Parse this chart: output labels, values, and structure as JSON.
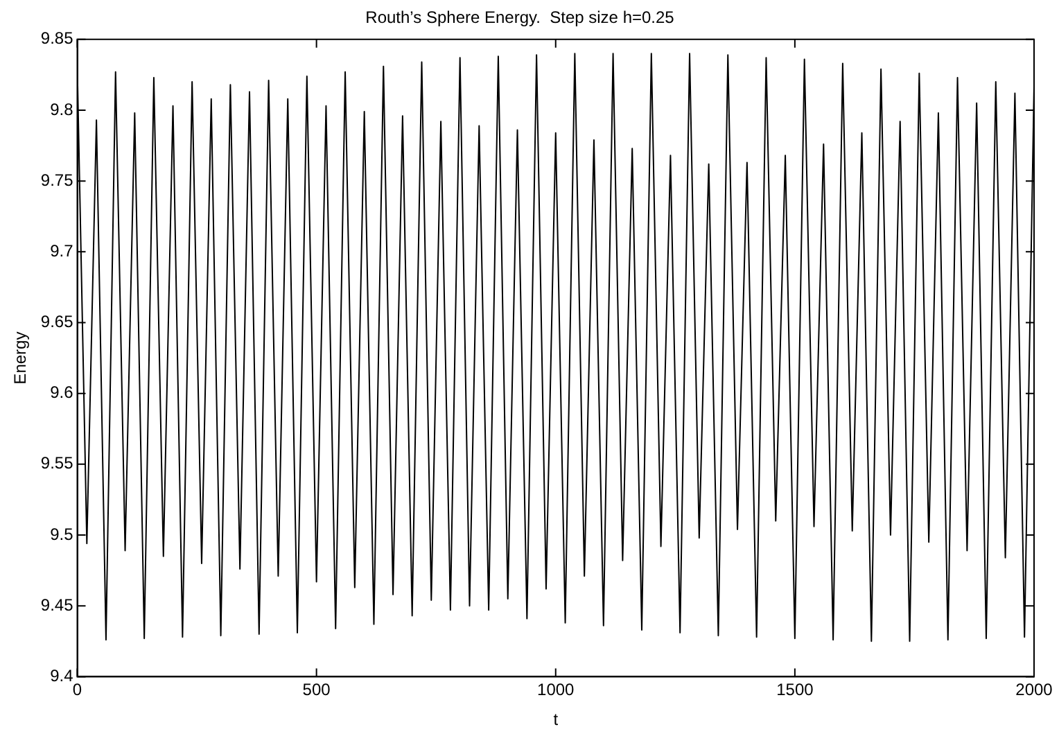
{
  "chart_data": {
    "type": "line",
    "title": "Routh’s Sphere Energy.  Step size h=0.25",
    "xlabel": "t",
    "ylabel": "Energy",
    "xlim": [
      0,
      2000
    ],
    "xticks": [
      0,
      500,
      1000,
      1500,
      2000
    ],
    "ylim": [
      9.4,
      9.85
    ],
    "yticks": [
      9.4,
      9.45,
      9.5,
      9.55,
      9.6,
      9.65,
      9.7,
      9.75,
      9.8,
      9.85
    ],
    "grid": false,
    "legend": false,
    "x": [
      0,
      20,
      40,
      60,
      80,
      100,
      120,
      140,
      160,
      180,
      200,
      220,
      240,
      260,
      280,
      300,
      320,
      340,
      360,
      380,
      400,
      420,
      440,
      460,
      480,
      500,
      520,
      540,
      560,
      580,
      600,
      620,
      640,
      660,
      680,
      700,
      720,
      740,
      760,
      780,
      800,
      820,
      840,
      860,
      880,
      900,
      920,
      940,
      960,
      980,
      1000,
      1020,
      1040,
      1060,
      1080,
      1100,
      1120,
      1140,
      1160,
      1180,
      1200,
      1220,
      1240,
      1260,
      1280,
      1300,
      1320,
      1340,
      1360,
      1380,
      1400,
      1420,
      1440,
      1460,
      1480,
      1500,
      1520,
      1540,
      1560,
      1580,
      1600,
      1620,
      1640,
      1660,
      1680,
      1700,
      1720,
      1740,
      1760,
      1780,
      1800,
      1820,
      1840,
      1860,
      1880,
      1900,
      1920,
      1940,
      1960,
      1980,
      2000
    ],
    "series": [
      {
        "color": "#000000",
        "values": [
          9.83,
          9.494,
          9.793,
          9.426,
          9.827,
          9.489,
          9.798,
          9.427,
          9.823,
          9.485,
          9.803,
          9.428,
          9.82,
          9.48,
          9.808,
          9.429,
          9.818,
          9.476,
          9.813,
          9.43,
          9.821,
          9.471,
          9.808,
          9.431,
          9.824,
          9.467,
          9.803,
          9.434,
          9.827,
          9.463,
          9.799,
          9.437,
          9.831,
          9.458,
          9.796,
          9.443,
          9.834,
          9.454,
          9.792,
          9.447,
          9.837,
          9.45,
          9.789,
          9.447,
          9.838,
          9.455,
          9.786,
          9.441,
          9.839,
          9.462,
          9.784,
          9.438,
          9.84,
          9.471,
          9.779,
          9.436,
          9.84,
          9.482,
          9.773,
          9.433,
          9.84,
          9.492,
          9.768,
          9.431,
          9.84,
          9.498,
          9.762,
          9.429,
          9.839,
          9.504,
          9.763,
          9.428,
          9.837,
          9.51,
          9.768,
          9.427,
          9.836,
          9.506,
          9.776,
          9.426,
          9.833,
          9.503,
          9.784,
          9.425,
          9.829,
          9.5,
          9.792,
          9.425,
          9.826,
          9.495,
          9.798,
          9.426,
          9.823,
          9.489,
          9.805,
          9.427,
          9.82,
          9.484,
          9.812,
          9.428,
          9.817
        ]
      }
    ]
  }
}
